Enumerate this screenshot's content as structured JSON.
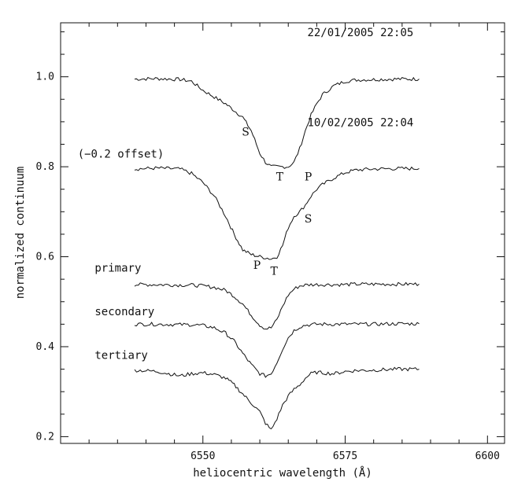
{
  "chart_data": {
    "type": "line",
    "xlabel": "heliocentric wavelength (Å)",
    "ylabel": "normalized continuum",
    "xlim": [
      6525,
      6603
    ],
    "ylim": [
      0.185,
      1.12
    ],
    "xticks": [
      6550,
      6575,
      6600
    ],
    "xtick_labels": [
      "6550",
      "6575",
      "6600"
    ],
    "yticks": [
      0.2,
      0.4,
      0.6,
      0.8,
      1.0
    ],
    "ytick_labels": [
      "0.2",
      "0.4",
      "0.6",
      "0.8",
      "1.0"
    ],
    "x": [
      6538,
      6542,
      6546,
      6548,
      6550,
      6552,
      6554,
      6555.5,
      6557,
      6558.5,
      6560,
      6561,
      6562,
      6563,
      6564,
      6565,
      6566,
      6567,
      6568,
      6569,
      6570,
      6571,
      6573,
      6575,
      6577,
      6580,
      6584,
      6588
    ],
    "series": [
      {
        "id": "obs1",
        "values": [
          0.995,
          0.996,
          0.994,
          0.99,
          0.97,
          0.955,
          0.94,
          0.925,
          0.91,
          0.88,
          0.83,
          0.81,
          0.8,
          0.8,
          0.8,
          0.8,
          0.81,
          0.84,
          0.88,
          0.915,
          0.94,
          0.96,
          0.98,
          0.99,
          0.993,
          0.994,
          0.995,
          0.995
        ]
      },
      {
        "id": "obs2",
        "values": [
          0.795,
          0.797,
          0.795,
          0.785,
          0.765,
          0.735,
          0.69,
          0.65,
          0.615,
          0.605,
          0.6,
          0.598,
          0.595,
          0.6,
          0.625,
          0.665,
          0.69,
          0.7,
          0.715,
          0.735,
          0.75,
          0.76,
          0.775,
          0.787,
          0.793,
          0.795,
          0.796,
          0.796
        ]
      },
      {
        "name": "primary",
        "values": [
          0.538,
          0.538,
          0.537,
          0.537,
          0.535,
          0.532,
          0.525,
          0.512,
          0.495,
          0.47,
          0.448,
          0.44,
          0.442,
          0.46,
          0.49,
          0.515,
          0.528,
          0.535,
          0.537,
          0.538,
          0.538,
          0.538,
          0.538,
          0.538,
          0.539,
          0.539,
          0.539,
          0.539
        ]
      },
      {
        "name": "secondary",
        "values": [
          0.45,
          0.45,
          0.449,
          0.449,
          0.447,
          0.442,
          0.43,
          0.412,
          0.385,
          0.36,
          0.34,
          0.335,
          0.34,
          0.365,
          0.395,
          0.42,
          0.436,
          0.444,
          0.448,
          0.449,
          0.45,
          0.45,
          0.45,
          0.45,
          0.45,
          0.45,
          0.451,
          0.451
        ]
      },
      {
        "name": "tertiary",
        "values": [
          0.348,
          0.345,
          0.335,
          0.34,
          0.342,
          0.338,
          0.33,
          0.315,
          0.295,
          0.275,
          0.255,
          0.23,
          0.215,
          0.24,
          0.27,
          0.29,
          0.305,
          0.315,
          0.33,
          0.34,
          0.343,
          0.342,
          0.34,
          0.345,
          0.347,
          0.348,
          0.35,
          0.35
        ]
      }
    ],
    "annotations": [
      {
        "text": "22/01/2005 22:05",
        "x": 6587,
        "y": 1.09,
        "anchor": "end",
        "style": "annot"
      },
      {
        "text": "10/02/2005 22:04",
        "x": 6587,
        "y": 0.89,
        "anchor": "end",
        "style": "annot"
      },
      {
        "text": "(−0.2 offset)",
        "x": 6528,
        "y": 0.82,
        "anchor": "start",
        "style": "annot"
      },
      {
        "text": "S",
        "x": 6557.5,
        "y": 0.869,
        "anchor": "middle",
        "style": "letter"
      },
      {
        "text": "T",
        "x": 6563.5,
        "y": 0.77,
        "anchor": "middle",
        "style": "letter"
      },
      {
        "text": "P",
        "x": 6568.5,
        "y": 0.77,
        "anchor": "middle",
        "style": "letter"
      },
      {
        "text": "S",
        "x": 6568.5,
        "y": 0.676,
        "anchor": "middle",
        "style": "letter"
      },
      {
        "text": "P",
        "x": 6559.5,
        "y": 0.573,
        "anchor": "middle",
        "style": "letter"
      },
      {
        "text": "T",
        "x": 6562.5,
        "y": 0.56,
        "anchor": "middle",
        "style": "letter"
      },
      {
        "text": "primary",
        "x": 6531,
        "y": 0.567,
        "anchor": "start",
        "style": "annot"
      },
      {
        "text": "secondary",
        "x": 6531,
        "y": 0.47,
        "anchor": "start",
        "style": "annot"
      },
      {
        "text": "tertiary",
        "x": 6531,
        "y": 0.373,
        "anchor": "start",
        "style": "annot"
      }
    ],
    "grid": false,
    "ticks_on_all_sides": true
  }
}
